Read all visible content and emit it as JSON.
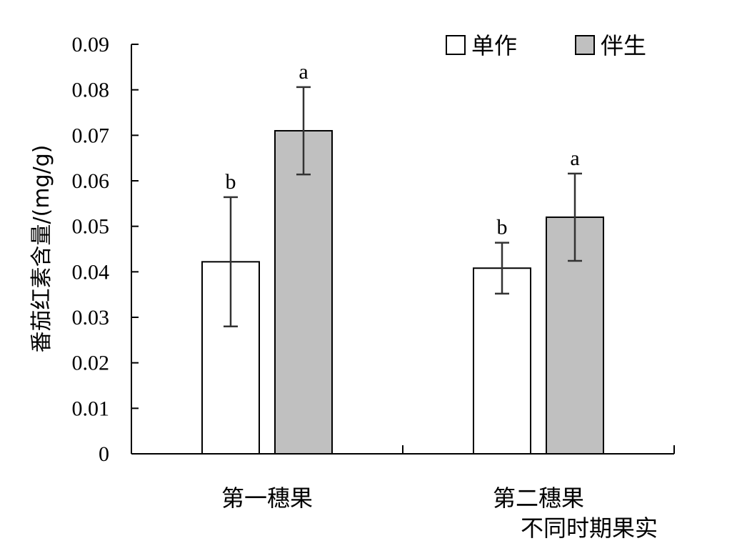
{
  "chart_data": {
    "type": "bar",
    "categories": [
      "第一穗果",
      "第二穗果"
    ],
    "series": [
      {
        "name": "单作",
        "values": [
          0.0422,
          0.0408
        ],
        "errors": [
          0.0142,
          0.0056
        ],
        "significance": [
          "b",
          "b"
        ],
        "color": "#ffffff"
      },
      {
        "name": "伴生",
        "values": [
          0.071,
          0.052
        ],
        "errors": [
          0.0096,
          0.0096
        ],
        "significance": [
          "a",
          "a"
        ],
        "color": "#c0c0c0"
      }
    ],
    "ylabel": "番茄红素含量/(mg/g)",
    "xlabel": "不同时期果实",
    "ylim": [
      0,
      0.09
    ],
    "yticks": [
      "0",
      "0.01",
      "0.02",
      "0.03",
      "0.04",
      "0.05",
      "0.06",
      "0.07",
      "0.08",
      "0.09"
    ],
    "grid": false,
    "legend_position": "top-right"
  }
}
